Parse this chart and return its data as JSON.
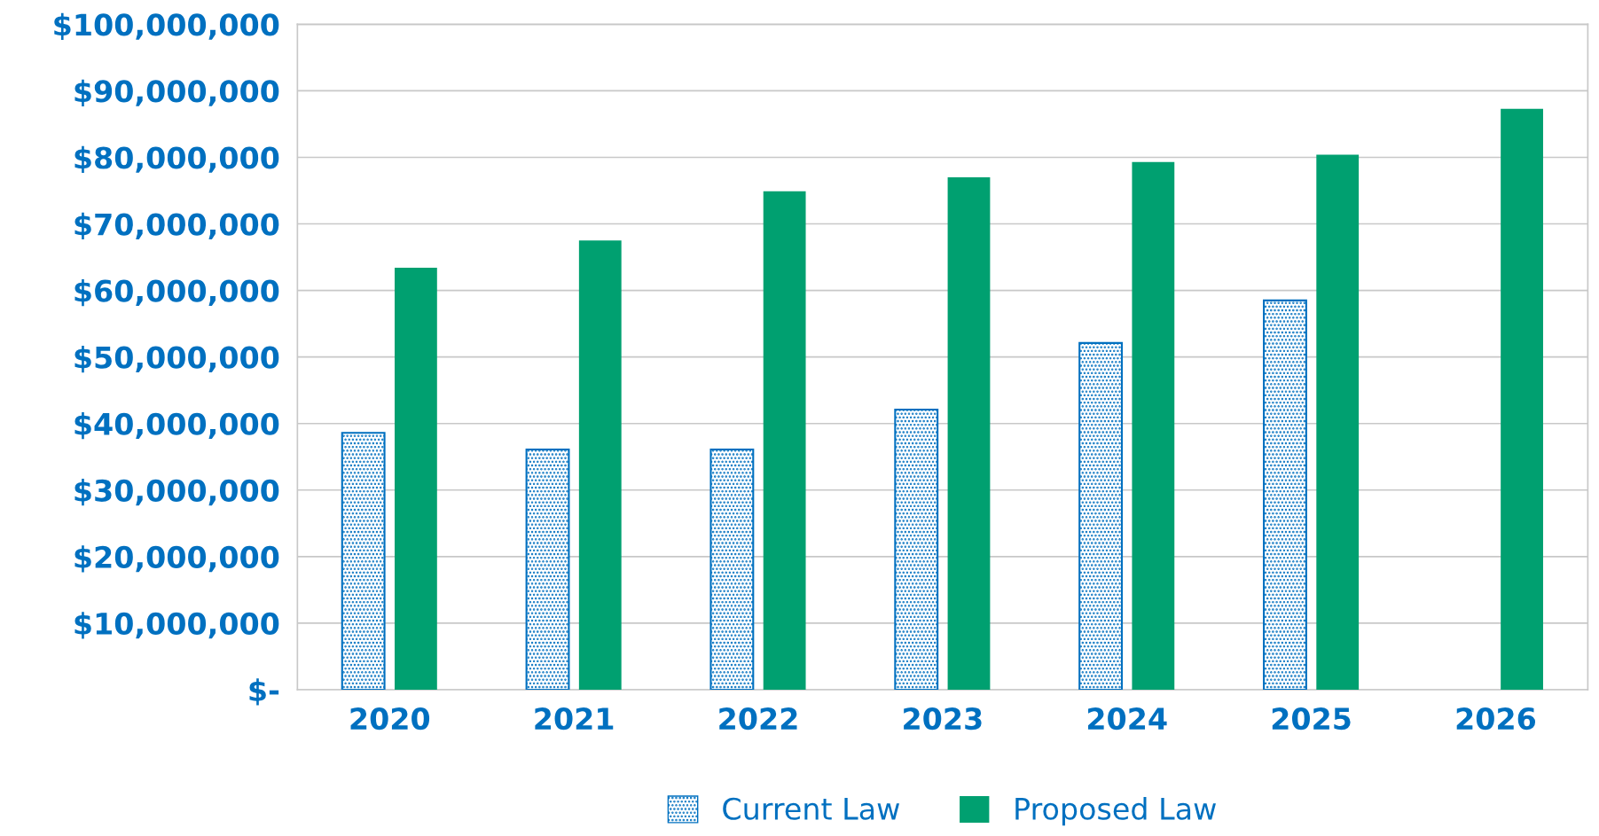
{
  "chart_data": {
    "type": "bar",
    "categories": [
      "2020",
      "2021",
      "2022",
      "2023",
      "2024",
      "2025",
      "2026"
    ],
    "series": [
      {
        "name": "Current Law",
        "color": "#0070c0",
        "values": [
          38600000,
          36100000,
          36100000,
          42100000,
          52100000,
          58500000,
          null
        ]
      },
      {
        "name": "Proposed Law",
        "color": "#00a070",
        "values": [
          63400000,
          67500000,
          74900000,
          77000000,
          79300000,
          80400000,
          87300000
        ]
      }
    ],
    "ylim": [
      0,
      100000000
    ],
    "yticks": [
      {
        "value": 0,
        "label": "$-"
      },
      {
        "value": 10000000,
        "label": "$10,000,000"
      },
      {
        "value": 20000000,
        "label": "$20,000,000"
      },
      {
        "value": 30000000,
        "label": "$30,000,000"
      },
      {
        "value": 40000000,
        "label": "$40,000,000"
      },
      {
        "value": 50000000,
        "label": "$50,000,000"
      },
      {
        "value": 60000000,
        "label": "$60,000,000"
      },
      {
        "value": 70000000,
        "label": "$70,000,000"
      },
      {
        "value": 80000000,
        "label": "$80,000,000"
      },
      {
        "value": 90000000,
        "label": "$90,000,000"
      },
      {
        "value": 100000000,
        "label": "$100,000,000"
      }
    ],
    "grid": "y",
    "legend": "bottom"
  }
}
